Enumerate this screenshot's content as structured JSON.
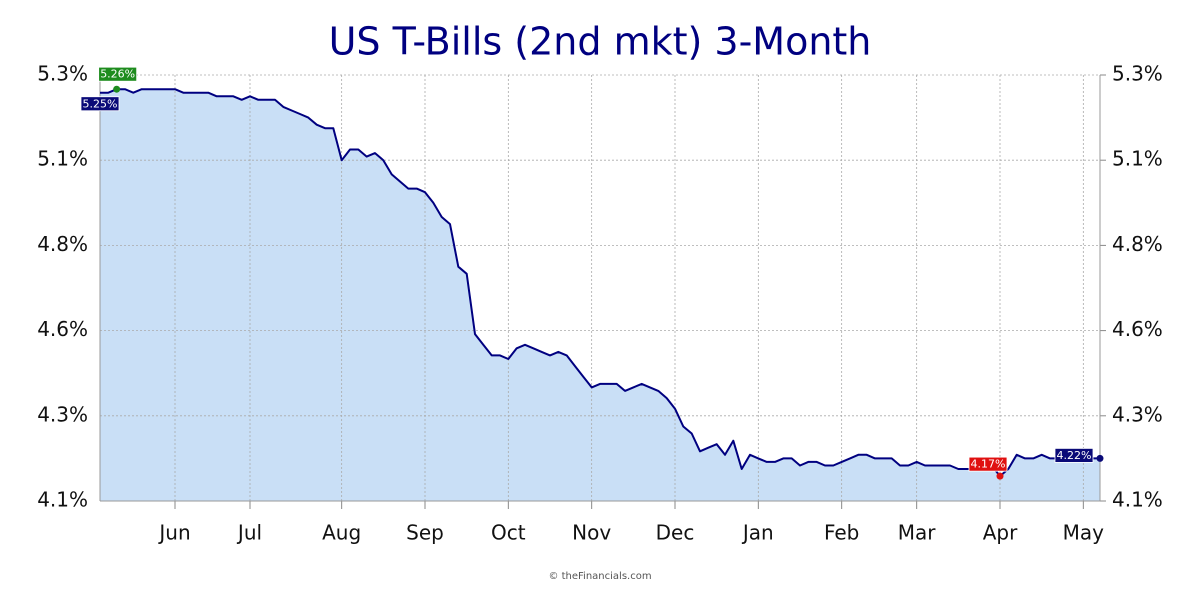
{
  "chart_data": {
    "type": "area",
    "title": "US T-Bills (2nd mkt) 3-Month",
    "source": "© theFinancials.com",
    "categories": [
      null,
      null,
      null,
      null,
      null,
      null,
      null,
      null,
      null,
      "Jun",
      null,
      null,
      null,
      null,
      null,
      null,
      null,
      null,
      "Jul",
      null,
      null,
      null,
      null,
      null,
      null,
      null,
      null,
      null,
      null,
      "Aug",
      null,
      null,
      null,
      null,
      null,
      null,
      null,
      null,
      null,
      "Sep",
      null,
      null,
      null,
      null,
      null,
      null,
      null,
      null,
      null,
      "Oct",
      null,
      null,
      null,
      null,
      null,
      null,
      null,
      null,
      null,
      "Nov",
      null,
      null,
      null,
      null,
      null,
      null,
      null,
      null,
      null,
      "Dec",
      null,
      null,
      null,
      null,
      null,
      null,
      null,
      null,
      null,
      "Jan",
      null,
      null,
      null,
      null,
      null,
      null,
      null,
      null,
      null,
      "Feb",
      null,
      null,
      null,
      null,
      null,
      null,
      null,
      null,
      "Mar",
      null,
      null,
      null,
      null,
      null,
      null,
      null,
      null,
      null,
      "Apr",
      null,
      null,
      null,
      null,
      null,
      null,
      null,
      null,
      null,
      "May",
      null,
      null
    ],
    "values": [
      5.25,
      5.25,
      5.26,
      5.26,
      5.25,
      5.26,
      5.26,
      5.26,
      5.26,
      5.26,
      5.25,
      5.25,
      5.25,
      5.25,
      5.24,
      5.24,
      5.24,
      5.23,
      5.24,
      5.23,
      5.23,
      5.23,
      5.21,
      5.2,
      5.19,
      5.18,
      5.16,
      5.15,
      5.15,
      5.06,
      5.09,
      5.09,
      5.07,
      5.08,
      5.06,
      5.02,
      5.0,
      4.98,
      4.98,
      4.97,
      4.94,
      4.9,
      4.88,
      4.76,
      4.74,
      4.57,
      4.54,
      4.51,
      4.51,
      4.5,
      4.53,
      4.54,
      4.53,
      4.52,
      4.51,
      4.52,
      4.51,
      4.48,
      4.45,
      4.42,
      4.43,
      4.43,
      4.43,
      4.41,
      4.42,
      4.43,
      4.42,
      4.41,
      4.39,
      4.36,
      4.31,
      4.29,
      4.24,
      4.25,
      4.26,
      4.23,
      4.27,
      4.19,
      4.23,
      4.22,
      4.21,
      4.21,
      4.22,
      4.22,
      4.2,
      4.21,
      4.21,
      4.2,
      4.2,
      4.21,
      4.22,
      4.23,
      4.23,
      4.22,
      4.22,
      4.22,
      4.2,
      4.2,
      4.21,
      4.2,
      4.2,
      4.2,
      4.2,
      4.19,
      4.19,
      4.19,
      4.2,
      4.2,
      4.17,
      4.19,
      4.23,
      4.22,
      4.22,
      4.23,
      4.22,
      4.22,
      4.22,
      4.22,
      4.22,
      4.22,
      4.22
    ],
    "value_labels": [
      "5.25%",
      null,
      "5.26%",
      null,
      null,
      null,
      null,
      null,
      null,
      null,
      null,
      null,
      null,
      null,
      null,
      null,
      null,
      null,
      null,
      null,
      null,
      null,
      null,
      null,
      null,
      null,
      null,
      null,
      null,
      null,
      null,
      null,
      null,
      null,
      null,
      null,
      null,
      null,
      null,
      null,
      null,
      null,
      null,
      null,
      null,
      null,
      null,
      null,
      null,
      null,
      null,
      null,
      null,
      null,
      null,
      null,
      null,
      null,
      null,
      null,
      null,
      null,
      null,
      null,
      null,
      null,
      null,
      null,
      null,
      null,
      null,
      null,
      null,
      null,
      null,
      null,
      null,
      null,
      null,
      null,
      null,
      null,
      null,
      null,
      null,
      null,
      null,
      null,
      null,
      null,
      null,
      null,
      null,
      null,
      null,
      null,
      null,
      null,
      null,
      null,
      null,
      null,
      null,
      null,
      null,
      null,
      null,
      null,
      "4.17%",
      null,
      null,
      null,
      null,
      null,
      null,
      null,
      null,
      null,
      null,
      null,
      "4.22%"
    ],
    "value_label_colors": [
      "#0a0a78",
      null,
      "#1e8c1e",
      null,
      null,
      null,
      null,
      null,
      null,
      null,
      null,
      null,
      null,
      null,
      null,
      null,
      null,
      null,
      null,
      null,
      null,
      null,
      null,
      null,
      null,
      null,
      null,
      null,
      null,
      null,
      null,
      null,
      null,
      null,
      null,
      null,
      null,
      null,
      null,
      null,
      null,
      null,
      null,
      null,
      null,
      null,
      null,
      null,
      null,
      null,
      null,
      null,
      null,
      null,
      null,
      null,
      null,
      null,
      null,
      null,
      null,
      null,
      null,
      null,
      null,
      null,
      null,
      null,
      null,
      null,
      null,
      null,
      null,
      null,
      null,
      null,
      null,
      null,
      null,
      null,
      null,
      null,
      null,
      null,
      null,
      null,
      null,
      null,
      null,
      null,
      null,
      null,
      null,
      null,
      null,
      null,
      null,
      null,
      null,
      null,
      null,
      null,
      null,
      null,
      null,
      null,
      null,
      null,
      "#e01010",
      null,
      null,
      null,
      null,
      null,
      null,
      null,
      null,
      null,
      null,
      null,
      "#0a0a78"
    ],
    "color": "#000080",
    "fill_color": "#c9dff6",
    "ylim": [
      4.1,
      5.3
    ],
    "yticks": [
      {
        "value": 4.1,
        "label": "4.1%"
      },
      {
        "value": 4.34,
        "label": "4.3%"
      },
      {
        "value": 4.58,
        "label": "4.6%"
      },
      {
        "value": 4.82,
        "label": "4.8%"
      },
      {
        "value": 5.06,
        "label": "5.1%"
      },
      {
        "value": 5.3,
        "label": "5.3%"
      }
    ],
    "y2lim": [
      4.1,
      5.3
    ],
    "y2ticks": [
      {
        "value": 4.1,
        "label": "4.1%"
      },
      {
        "value": 4.34,
        "label": "4.3%"
      },
      {
        "value": 4.58,
        "label": "4.6%"
      },
      {
        "value": 4.82,
        "label": "4.8%"
      },
      {
        "value": 5.06,
        "label": "5.1%"
      },
      {
        "value": 5.3,
        "label": "5.3%"
      }
    ],
    "grid": true
  }
}
